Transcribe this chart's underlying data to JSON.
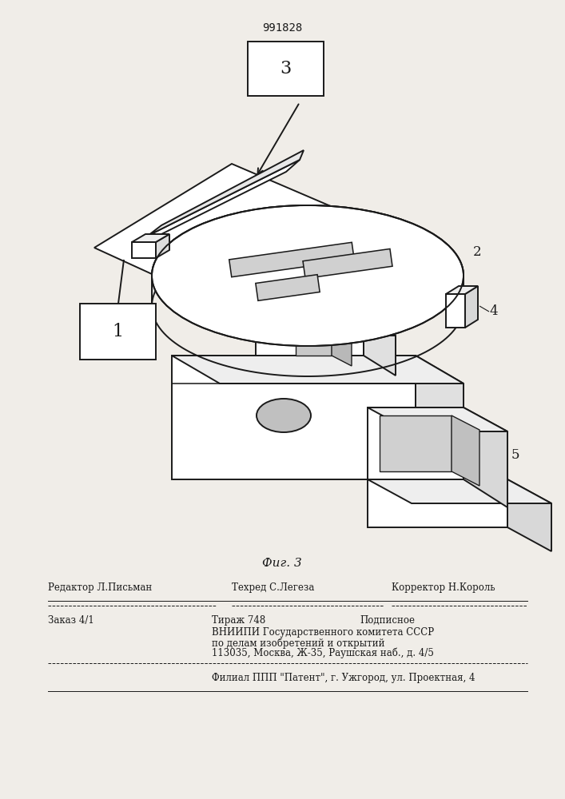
{
  "patent_number": "991828",
  "figure_label": "Фиг. 3",
  "bg_color": "#f0ede8",
  "lc": "#1a1a1a",
  "white": "#ffffff",
  "footer": {
    "editor": "Редактор Л.Письман",
    "techred": "Техред С.Легеза",
    "corrector": "Корректор Н.Король",
    "order": "Заказ 4/1",
    "circulation": "Тираж 748",
    "subscription": "Подписное",
    "vn1": "ВНИИПИ Государственного комитета СССР",
    "vn2": "по делам изобретений и открытий",
    "vn3": "113035, Москва, Ж-35, Раушская наб., д. 4/5",
    "filial": "Филиал ППП \"Патент\", г. Ужгород, ул. Проектная, 4"
  }
}
